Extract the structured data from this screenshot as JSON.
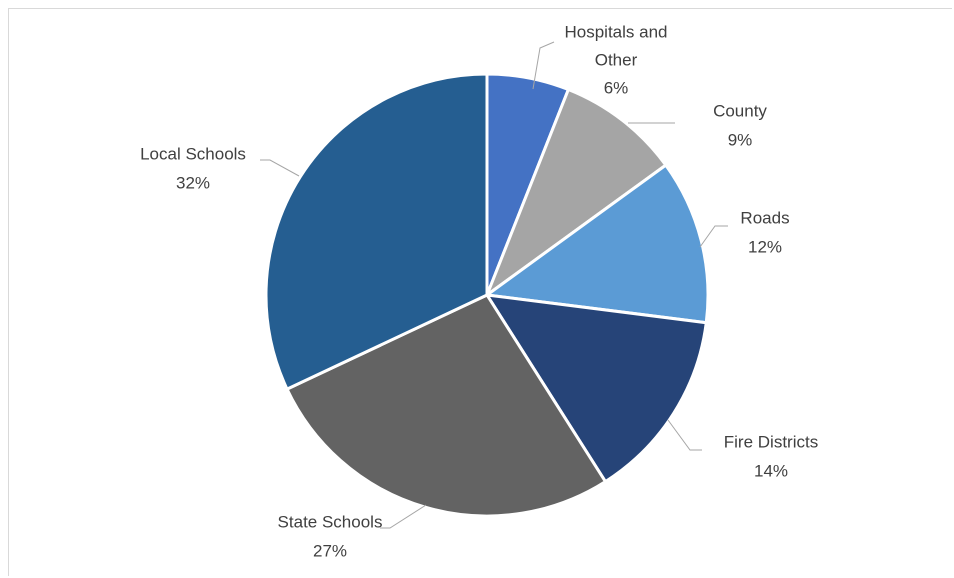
{
  "chart_data": {
    "type": "pie",
    "title": "",
    "categories": [
      "Hospitals and Other",
      "County",
      "Roads",
      "Fire Districts",
      "State Schools",
      "Local Schools"
    ],
    "values": [
      6,
      9,
      12,
      14,
      27,
      32
    ],
    "unit": "%",
    "labels": [
      {
        "name_lines": [
          "Hospitals and",
          "Other"
        ],
        "value_text": "6%"
      },
      {
        "name_lines": [
          "County"
        ],
        "value_text": "9%"
      },
      {
        "name_lines": [
          "Roads"
        ],
        "value_text": "12%"
      },
      {
        "name_lines": [
          "Fire Districts"
        ],
        "value_text": "14%"
      },
      {
        "name_lines": [
          "State Schools"
        ],
        "value_text": "27%"
      },
      {
        "name_lines": [
          "Local Schools"
        ],
        "value_text": "32%"
      }
    ],
    "colors": [
      "#4472C4",
      "#A5A5A5",
      "#5B9BD5",
      "#264478",
      "#636363",
      "#255E91"
    ],
    "start_angle_deg": 0,
    "direction": "clockwise",
    "legend": "none",
    "data_labels": "outside-with-leader-lines"
  }
}
